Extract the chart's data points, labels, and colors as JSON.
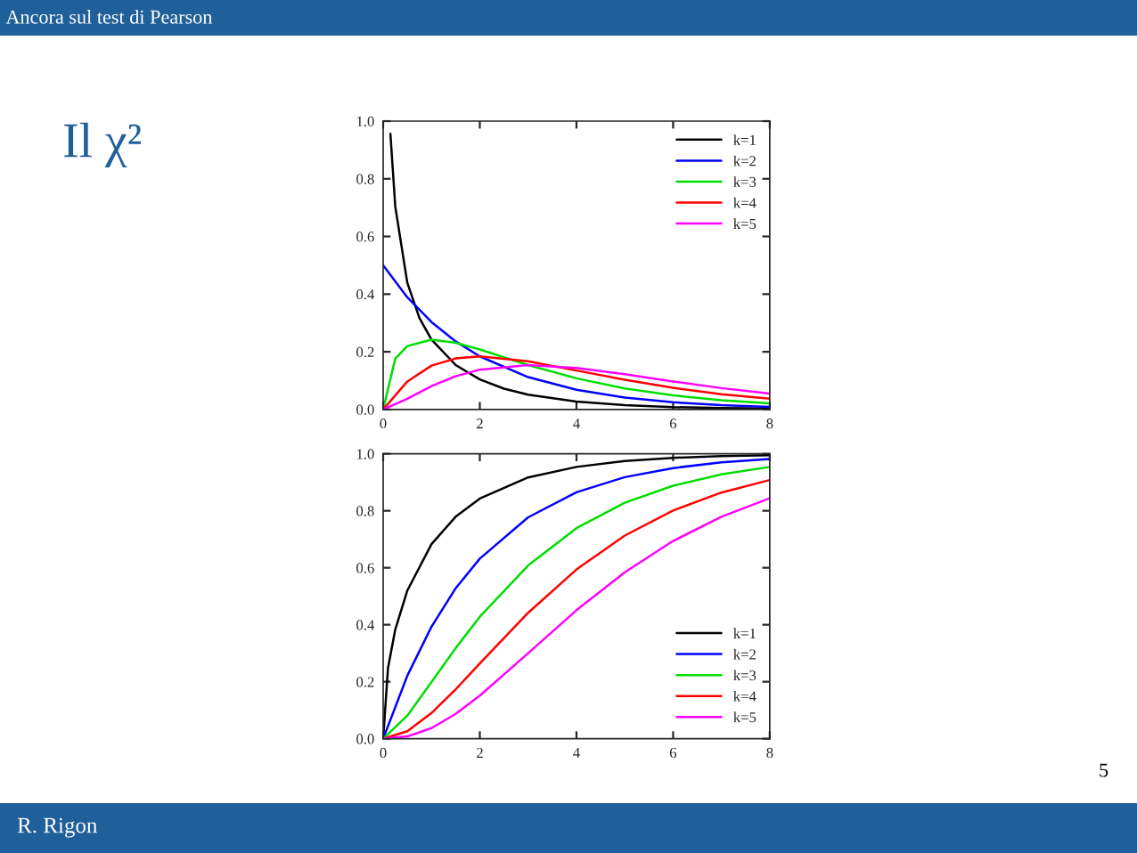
{
  "chart_data": [
    {
      "type": "line",
      "annotations": [
        "Ancora sul test di Pearson",
        "Il χ²",
        "R. Rigon",
        "5"
      ],
      "x": [
        0,
        0.5,
        1,
        1.5,
        2,
        3,
        4,
        5,
        6,
        7,
        8
      ],
      "series": [
        {
          "name": "k=1",
          "color": "#000000",
          "x": [
            0.15,
            0.25,
            0.5,
            0.75,
            1,
            1.5,
            2,
            2.5,
            3,
            4,
            5,
            6,
            7,
            8
          ],
          "values": [
            0.956,
            0.704,
            0.439,
            0.317,
            0.242,
            0.154,
            0.104,
            0.072,
            0.051,
            0.027,
            0.015,
            0.008,
            0.005,
            0.003
          ]
        },
        {
          "name": "k=2",
          "color": "#0000ff",
          "values": [
            0.5,
            0.389,
            0.303,
            0.236,
            0.184,
            0.112,
            0.068,
            0.041,
            0.025,
            0.015,
            0.009
          ]
        },
        {
          "name": "k=3",
          "color": "#00dd00",
          "x": [
            0,
            0.25,
            0.5,
            1,
            1.5,
            2,
            3,
            4,
            5,
            6,
            7,
            8
          ],
          "values": [
            0,
            0.176,
            0.22,
            0.242,
            0.231,
            0.208,
            0.154,
            0.108,
            0.073,
            0.049,
            0.032,
            0.021
          ]
        },
        {
          "name": "k=4",
          "color": "#ff0000",
          "values": [
            0,
            0.097,
            0.152,
            0.177,
            0.184,
            0.167,
            0.135,
            0.103,
            0.075,
            0.053,
            0.037
          ]
        },
        {
          "name": "k=5",
          "color": "#ff00ff",
          "values": [
            0,
            0.037,
            0.081,
            0.115,
            0.138,
            0.154,
            0.144,
            0.122,
            0.097,
            0.074,
            0.055
          ]
        }
      ],
      "xlim": [
        0,
        8
      ],
      "ylim": [
        0,
        1
      ],
      "xticks": [
        0,
        2,
        4,
        6,
        8
      ],
      "yticks": [
        {
          "value": 0,
          "label": "0.0"
        },
        {
          "value": 0.2,
          "label": "0.2"
        },
        {
          "value": 0.4,
          "label": "0.4"
        },
        {
          "value": 0.6,
          "label": "0.6"
        },
        {
          "value": 0.8,
          "label": "0.8"
        },
        {
          "value": 1,
          "label": "1.0"
        }
      ],
      "legend": "top right",
      "grid": false
    },
    {
      "type": "line",
      "x": [
        0,
        0.5,
        1,
        1.5,
        2,
        3,
        4,
        5,
        6,
        7,
        8
      ],
      "series": [
        {
          "name": "k=1",
          "color": "#000000",
          "x": [
            0,
            0.1,
            0.25,
            0.5,
            1,
            1.5,
            2,
            3,
            4,
            5,
            6,
            7,
            8
          ],
          "values": [
            0,
            0.248,
            0.383,
            0.52,
            0.683,
            0.779,
            0.843,
            0.917,
            0.954,
            0.975,
            0.986,
            0.992,
            0.995
          ]
        },
        {
          "name": "k=2",
          "color": "#0000ff",
          "values": [
            0,
            0.221,
            0.393,
            0.528,
            0.632,
            0.777,
            0.865,
            0.918,
            0.95,
            0.97,
            0.982
          ]
        },
        {
          "name": "k=3",
          "color": "#00dd00",
          "values": [
            0,
            0.081,
            0.199,
            0.318,
            0.428,
            0.608,
            0.739,
            0.828,
            0.888,
            0.928,
            0.954
          ]
        },
        {
          "name": "k=4",
          "color": "#ff0000",
          "values": [
            0,
            0.026,
            0.09,
            0.173,
            0.264,
            0.442,
            0.594,
            0.713,
            0.801,
            0.864,
            0.908
          ]
        },
        {
          "name": "k=5",
          "color": "#ff00ff",
          "values": [
            0,
            0.008,
            0.037,
            0.087,
            0.151,
            0.3,
            0.451,
            0.584,
            0.694,
            0.779,
            0.844
          ]
        }
      ],
      "xlim": [
        0,
        8
      ],
      "ylim": [
        0,
        1
      ],
      "xticks": [
        0,
        2,
        4,
        6,
        8
      ],
      "yticks": [
        {
          "value": 0,
          "label": "0.0"
        },
        {
          "value": 0.2,
          "label": "0.2"
        },
        {
          "value": 0.4,
          "label": "0.4"
        },
        {
          "value": 0.6,
          "label": "0.6"
        },
        {
          "value": 0.8,
          "label": "0.8"
        },
        {
          "value": 1,
          "label": "1.0"
        }
      ],
      "legend": "bottom right",
      "grid": false
    }
  ]
}
